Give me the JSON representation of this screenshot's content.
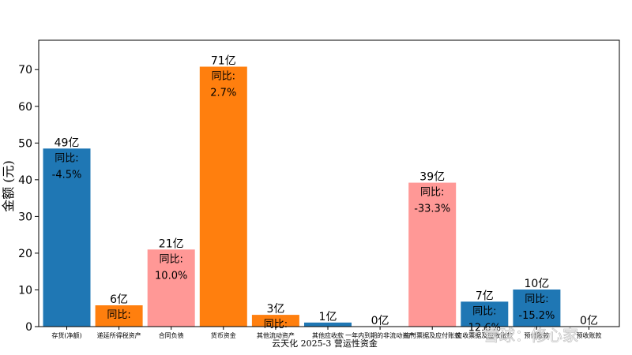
{
  "chart_data": {
    "type": "bar",
    "title": "",
    "xlabel": "云天化 2025-3 营运性资金",
    "ylabel": "金额 (元)",
    "ylim": [
      0,
      78
    ],
    "yticks": [
      0,
      10,
      20,
      30,
      40,
      50,
      60,
      70
    ],
    "grid": false,
    "categories": [
      "存货(净额)",
      "递延所得税资产",
      "合同负债",
      "货币资金",
      "其他流动资产",
      "其他应收款",
      "一年内到期的非流动资产",
      "应付票据及应付账款",
      "应收票据及应收账款",
      "预付账款",
      "预收账款"
    ],
    "values": [
      48.5,
      5.8,
      21.0,
      70.8,
      3.2,
      1.1,
      0.0,
      39.2,
      6.8,
      10.1,
      0.0
    ],
    "value_labels": [
      "49亿",
      "6亿",
      "21亿",
      "71亿",
      "3亿",
      "1亿",
      "0亿",
      "39亿",
      "7亿",
      "10亿",
      "0亿"
    ],
    "yoy_prefix": "同比:",
    "yoy": [
      "-4.5%",
      "",
      "10.0%",
      "2.7%",
      "",
      "",
      "",
      "-33.3%",
      "12.6%",
      "-15.2%",
      ""
    ],
    "show_yoy": [
      true,
      true,
      true,
      true,
      true,
      false,
      false,
      true,
      true,
      true,
      false
    ],
    "colors": [
      "#1f77b4",
      "#ff7f0e",
      "#ff9896",
      "#ff7f0e",
      "#ff7f0e",
      "#1f77b4",
      "#1f77b4",
      "#ff9896",
      "#1f77b4",
      "#1f77b4",
      "#1f77b4"
    ]
  },
  "watermark": {
    "text": "雪球：修心家"
  }
}
